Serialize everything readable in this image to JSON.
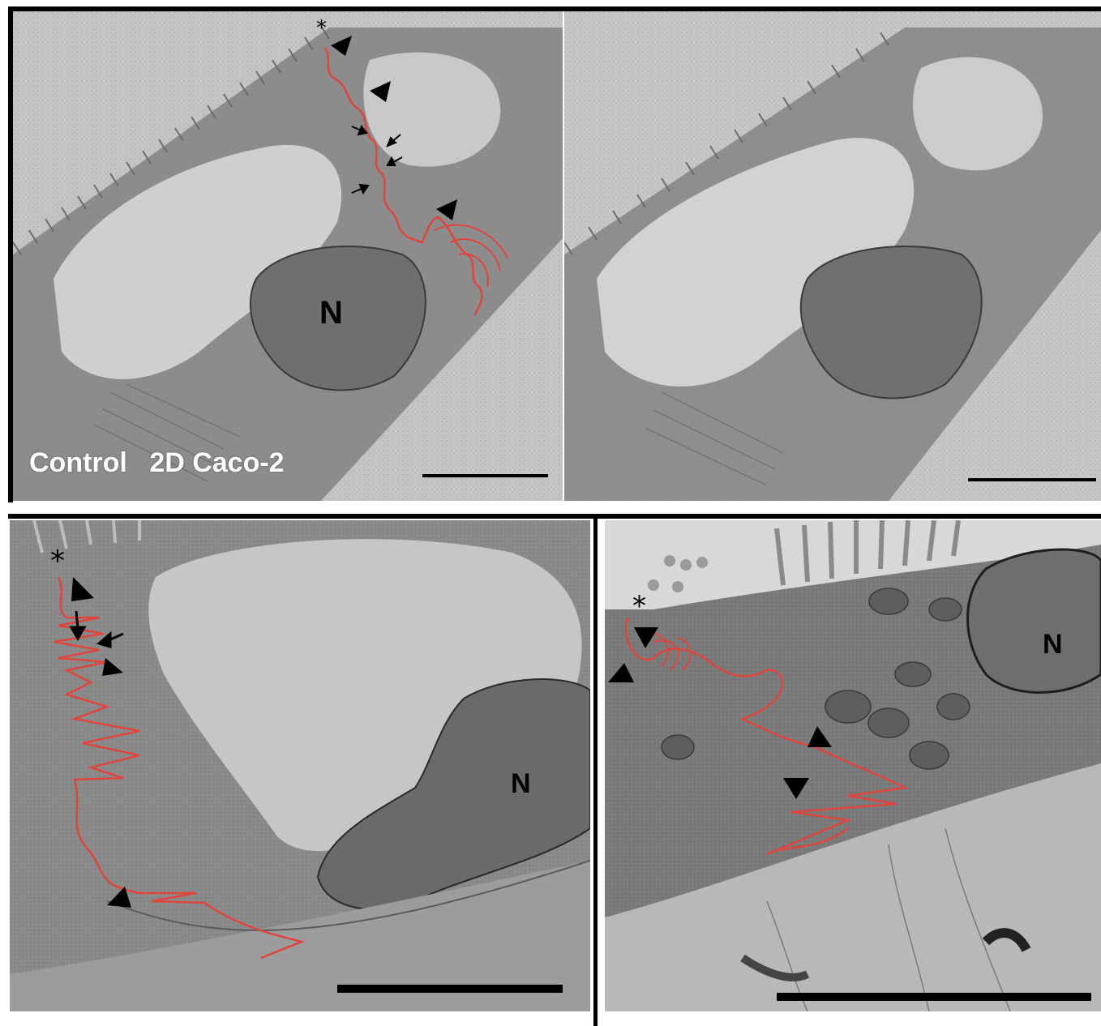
{
  "panels": {
    "top_left": {
      "nucleus_label": "N",
      "asterisk": "*",
      "caption_condition": "Control",
      "caption_cell_line": "2D Caco-2"
    },
    "top_right": {},
    "bottom_left": {
      "nucleus_label": "N",
      "asterisk": "*"
    },
    "bottom_right": {
      "nucleus_label": "N",
      "asterisk": "*"
    }
  },
  "colors": {
    "membrane_trace": "#e0453c",
    "scale_bar": "#000000",
    "caption": "#ffffff"
  },
  "icons": [
    "arrowhead-icon",
    "arrow-icon",
    "asterisk-icon",
    "scale-bar"
  ]
}
